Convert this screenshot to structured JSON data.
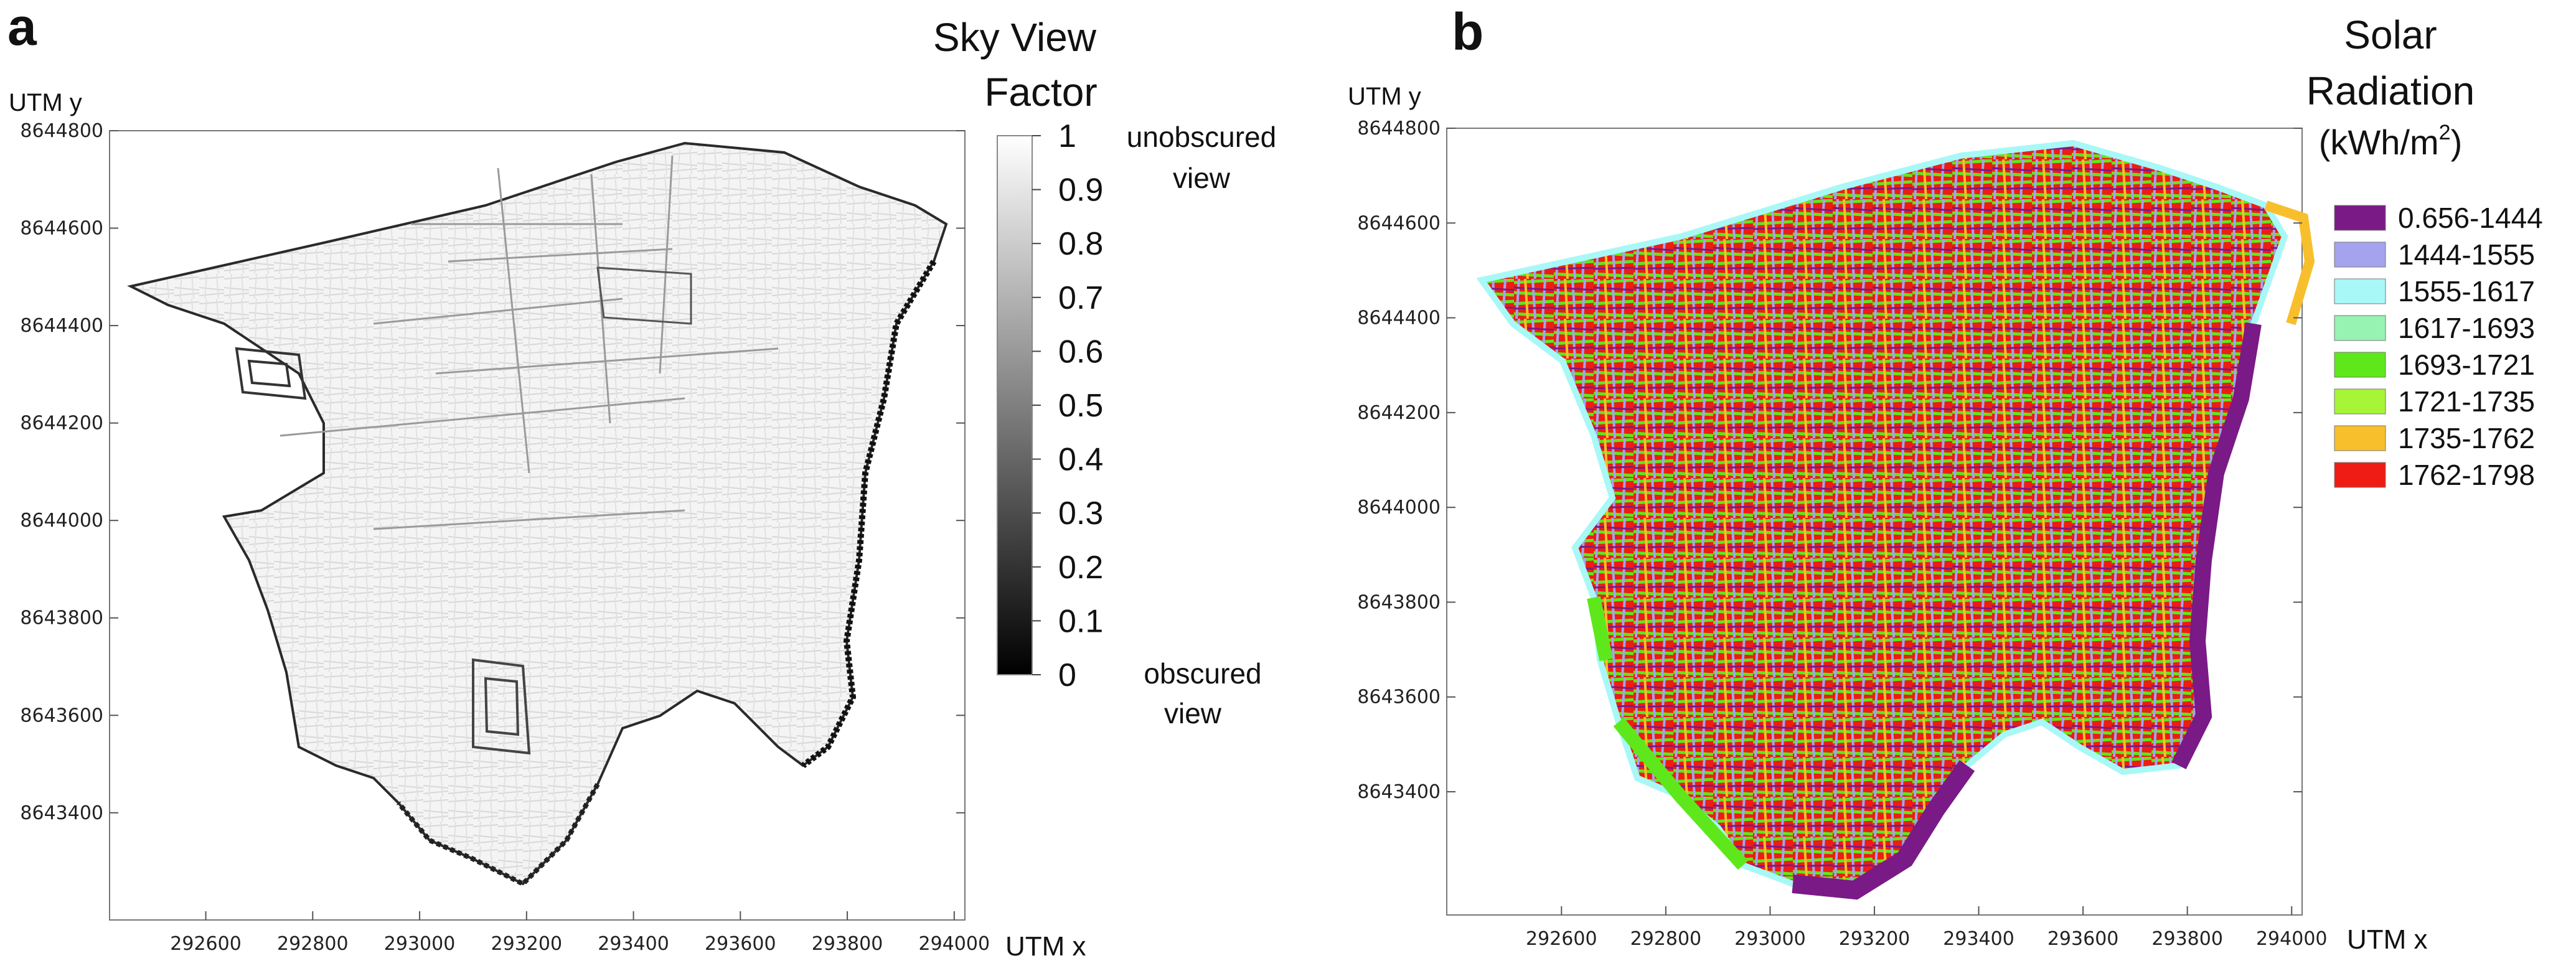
{
  "panel_a": {
    "label": "a",
    "title_line1": "Sky View",
    "title_line2": "Factor",
    "x_axis_label": "UTM x",
    "y_axis_label": "UTM y",
    "colorbar_top_note": [
      "unobscured",
      "view"
    ],
    "colorbar_bottom_note": [
      "obscured",
      "view"
    ]
  },
  "panel_b": {
    "label": "b",
    "title_line1": "Solar",
    "title_line2": "Radiation",
    "title_unit": "(kWh/m",
    "title_unit_sup": "2",
    "title_unit_close": ")",
    "x_axis_label": "UTM x",
    "y_axis_label": "UTM y"
  },
  "chart_data": [
    {
      "type": "heatmap",
      "title": "Sky View Factor",
      "xlabel": "UTM x",
      "ylabel": "UTM y",
      "xlim": [
        292420,
        294020
      ],
      "ylim": [
        8643180,
        8644800
      ],
      "x_ticks": [
        292600,
        292800,
        293000,
        293200,
        293400,
        293600,
        293800,
        294000
      ],
      "y_ticks": [
        8644800,
        8644600,
        8644400,
        8644200,
        8644000,
        8643800,
        8643600,
        8643400
      ],
      "colorbar": {
        "ticks": [
          "1",
          "0.9",
          "0.8",
          "0.7",
          "0.6",
          "0.5",
          "0.4",
          "0.3",
          "0.2",
          "0.1",
          "0"
        ],
        "colors": [
          "#ffffff",
          "#000000"
        ]
      }
    },
    {
      "type": "heatmap",
      "title": "Solar Radiation (kWh/m2)",
      "xlabel": "UTM x",
      "ylabel": "UTM y",
      "xlim": [
        292380,
        294020
      ],
      "ylim": [
        8643140,
        8644800
      ],
      "x_ticks": [
        292600,
        292800,
        293000,
        293200,
        293400,
        293600,
        293800,
        294000
      ],
      "y_ticks": [
        8644800,
        8644600,
        8644400,
        8644200,
        8644000,
        8643800,
        8643600,
        8643400
      ],
      "legend": [
        {
          "label": "0.656-1444",
          "color": "#7a1a86"
        },
        {
          "label": "1444-1555",
          "color": "#a5a3ee"
        },
        {
          "label": "1555-1617",
          "color": "#a8f8f7"
        },
        {
          "label": "1617-1693",
          "color": "#97f3b2"
        },
        {
          "label": "1693-1721",
          "color": "#5ee81c"
        },
        {
          "label": "1721-1735",
          "color": "#a6f536"
        },
        {
          "label": "1735-1762",
          "color": "#f8bf2c"
        },
        {
          "label": "1762-1798",
          "color": "#ee1c14"
        }
      ]
    }
  ]
}
